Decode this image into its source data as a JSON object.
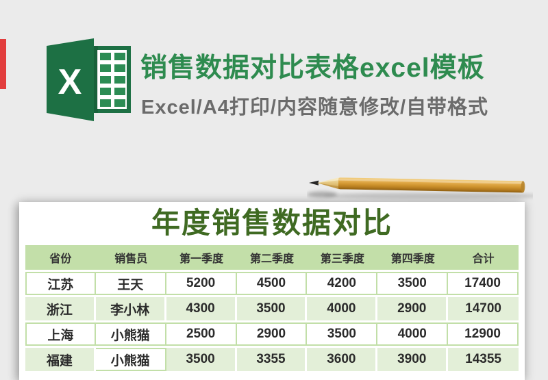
{
  "page": {
    "background": "#ebebeb"
  },
  "promo": {
    "red_tab_color": "#e23d3d",
    "logo": {
      "letter": "X",
      "cover_green": "#1d7044",
      "cell_green": "#2c8c54"
    },
    "title": "销售数据对比表格excel模板",
    "title_color": "#2e8b4f",
    "subtitle": "Excel/A4打印/内容随意修改/自带格式",
    "subtitle_color": "#6b6b6b"
  },
  "pencil": {
    "body_color": "#d9a041",
    "wood_color": "#e9cd8d",
    "tip_color": "#262626"
  },
  "sheet": {
    "title": "年度销售数据对比",
    "title_color": "#3f6a22",
    "table": {
      "header_bg": "#c3dfa9",
      "alt_row_bg": "#e3efd8",
      "grid_line_color": "#c2dfa8",
      "columns": [
        "省份",
        "销售员",
        "第一季度",
        "第二季度",
        "第三季度",
        "第四季度",
        "合计"
      ],
      "rows": [
        [
          "江苏",
          "王天",
          "5200",
          "4500",
          "4200",
          "3500",
          "17400"
        ],
        [
          "浙江",
          "李小林",
          "4300",
          "3500",
          "4000",
          "2900",
          "14700"
        ],
        [
          "上海",
          "小熊猫",
          "2500",
          "2900",
          "3500",
          "4000",
          "12900"
        ],
        [
          "福建",
          "小熊猫",
          "3500",
          "3355",
          "3600",
          "3900",
          "14355"
        ]
      ],
      "white_cells": [
        [
          3,
          1
        ]
      ]
    }
  }
}
